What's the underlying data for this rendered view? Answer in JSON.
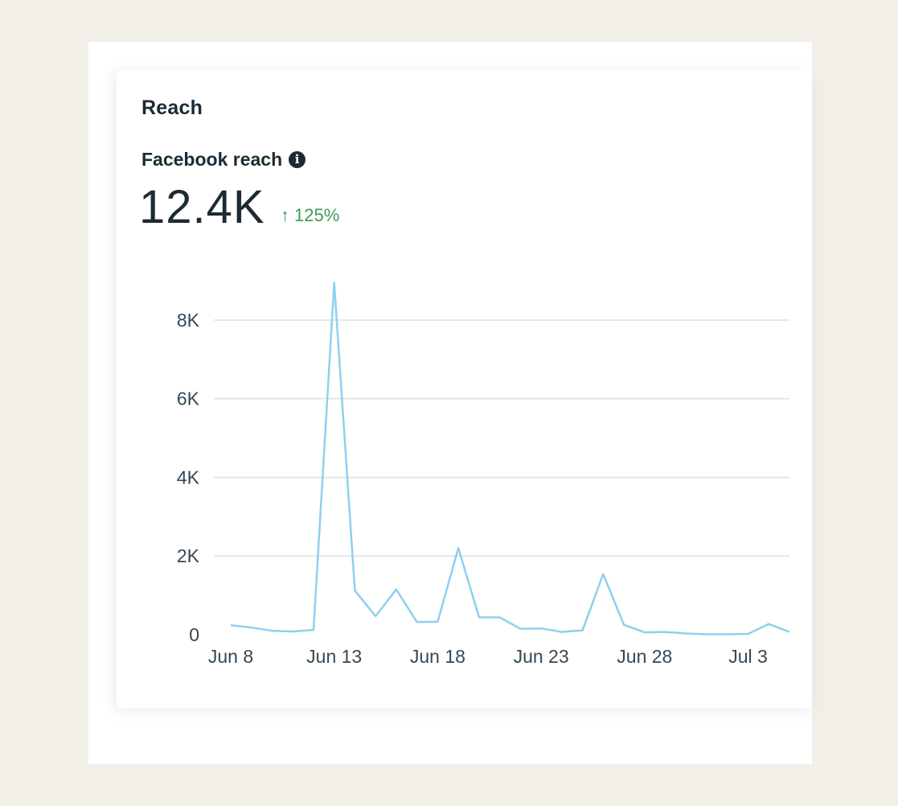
{
  "card": {
    "title": "Reach",
    "metric_label": "Facebook reach",
    "info_icon": "info-icon",
    "metric_value": "12.4K",
    "metric_change": "125%",
    "change_icon": "up-arrow-icon",
    "colors": {
      "positive": "#3a9a5c",
      "line": "#90cfee",
      "grid": "#e4e6eb",
      "text": "#1c2b33"
    }
  },
  "chart_data": {
    "type": "line",
    "title": "",
    "xlabel": "",
    "ylabel": "",
    "x": [
      "Jun 8",
      "Jun 9",
      "Jun 10",
      "Jun 11",
      "Jun 12",
      "Jun 13",
      "Jun 14",
      "Jun 15",
      "Jun 16",
      "Jun 17",
      "Jun 18",
      "Jun 19",
      "Jun 20",
      "Jun 21",
      "Jun 22",
      "Jun 23",
      "Jun 24",
      "Jun 25",
      "Jun 26",
      "Jun 27",
      "Jun 28",
      "Jun 29",
      "Jun 30",
      "Jul 1",
      "Jul 2",
      "Jul 3",
      "Jul 4",
      "Jul 5"
    ],
    "x_ticks": [
      "Jun 8",
      "Jun 13",
      "Jun 18",
      "Jun 23",
      "Jun 28",
      "Jul 3"
    ],
    "y_ticks": [
      "0",
      "2K",
      "4K",
      "6K",
      "8K"
    ],
    "ylim": [
      0,
      9000
    ],
    "grid": true,
    "series": [
      {
        "values": [
          240,
          180,
          100,
          80,
          120,
          8950,
          1120,
          470,
          1150,
          320,
          330,
          2200,
          440,
          440,
          150,
          160,
          70,
          110,
          1540,
          250,
          60,
          70,
          30,
          10,
          10,
          20,
          270,
          70
        ]
      }
    ]
  }
}
